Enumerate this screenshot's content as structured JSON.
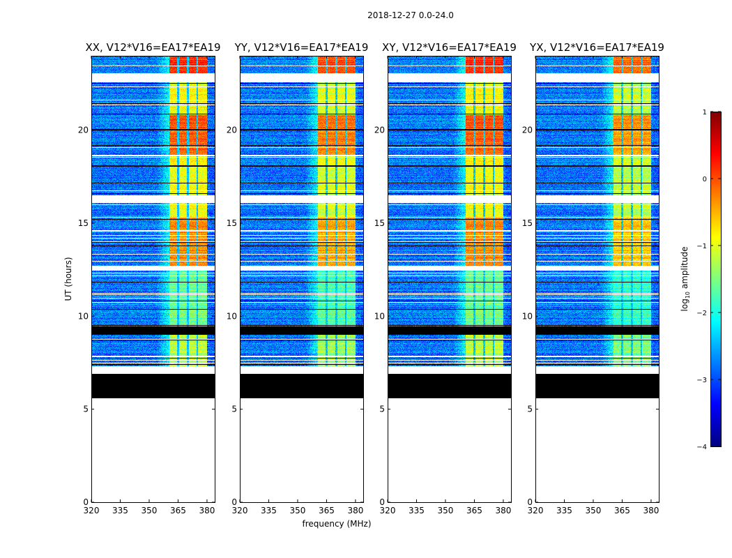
{
  "chart_data": {
    "type": "heatmap",
    "suptitle": "2018-12-27 0.0-24.0",
    "xlabel": "frequency (MHz)",
    "ylabel": "UT (hours)",
    "xlim": [
      320,
      384
    ],
    "ylim": [
      0,
      24
    ],
    "xticks": [
      "320",
      "335",
      "350",
      "365",
      "380"
    ],
    "xtick_values": [
      320,
      335,
      350,
      365,
      380
    ],
    "yticks": [
      "0",
      "5",
      "10",
      "15",
      "20"
    ],
    "ytick_values": [
      0,
      5,
      10,
      15,
      20
    ],
    "panels": [
      {
        "title": "XX, V12*V16=EA17*EA19",
        "band_offset": 0.0
      },
      {
        "title": "YY, V12*V16=EA17*EA19",
        "band_offset": -0.15
      },
      {
        "title": "XY, V12*V16=EA17*EA19",
        "band_offset": 0.0
      },
      {
        "title": "YX, V12*V16=EA17*EA19",
        "band_offset": -0.3
      }
    ],
    "background_level": -2.8,
    "band_range_mhz": [
      360.5,
      380
    ],
    "subband_gaps_mhz": [
      [
        364.5,
        365.5
      ],
      [
        369.5,
        370.5
      ],
      [
        374.5,
        375.5
      ]
    ],
    "time_segments": [
      {
        "start": 23.05,
        "end": 24,
        "kind": "data",
        "band_level": 0.1
      },
      {
        "start": 22.57,
        "end": 23.05,
        "kind": "gap"
      },
      {
        "start": 20.8,
        "end": 22.57,
        "kind": "data",
        "band_level": -0.9
      },
      {
        "start": 18.6,
        "end": 20.8,
        "kind": "data",
        "band_level": -0.1
      },
      {
        "start": 16.5,
        "end": 18.6,
        "kind": "data",
        "band_level": -0.9
      },
      {
        "start": 16.1,
        "end": 16.5,
        "kind": "gap"
      },
      {
        "start": 15.3,
        "end": 16.1,
        "kind": "data",
        "band_level": -0.9
      },
      {
        "start": 12.7,
        "end": 15.3,
        "kind": "data",
        "band_level": -0.3
      },
      {
        "start": 12.45,
        "end": 12.7,
        "kind": "gap"
      },
      {
        "start": 9.4,
        "end": 12.45,
        "kind": "data",
        "band_level": -1.6
      },
      {
        "start": 9.0,
        "end": 9.4,
        "kind": "flag"
      },
      {
        "start": 7.3,
        "end": 9.0,
        "kind": "data",
        "band_level": -1.2
      },
      {
        "start": 6.9,
        "end": 7.3,
        "kind": "gap"
      },
      {
        "start": 5.6,
        "end": 6.9,
        "kind": "flag"
      },
      {
        "start": 0,
        "end": 5.6,
        "kind": "empty"
      }
    ],
    "colorbar": {
      "label": "log",
      "label_sub": "10",
      "label_rest": " amplitude",
      "range": [
        -4,
        1
      ],
      "ticks": [
        "1",
        "0",
        "−1",
        "−2",
        "−3",
        "−4"
      ],
      "tick_values": [
        1,
        0,
        -1,
        -2,
        -3,
        -4
      ],
      "colormap": "jet"
    }
  }
}
